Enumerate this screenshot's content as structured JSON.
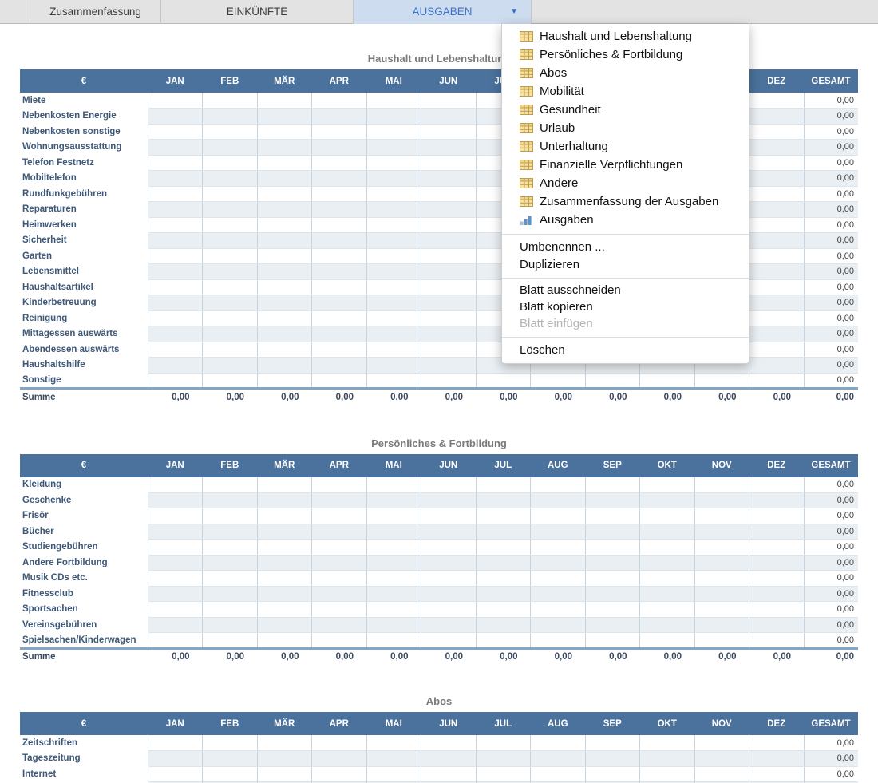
{
  "tab_bar": {
    "tabs": [
      {
        "label": "",
        "partial": true,
        "selected": false,
        "dropdown": false
      },
      {
        "label": "Zusammenfassung",
        "partial": false,
        "selected": false,
        "dropdown": false
      },
      {
        "label": "EINKÜNFTE",
        "partial": false,
        "selected": false,
        "dropdown": false
      },
      {
        "label": "AUSGABEN",
        "partial": false,
        "selected": true,
        "dropdown": true
      }
    ],
    "dropdown_arrow": "▼"
  },
  "sheet_menu": {
    "sheets": [
      {
        "label": "Haushalt und Lebenshaltung",
        "icon": "table-icon"
      },
      {
        "label": "Persönliches & Fortbildung",
        "icon": "table-icon"
      },
      {
        "label": "Abos",
        "icon": "table-icon"
      },
      {
        "label": "Mobilität",
        "icon": "table-icon"
      },
      {
        "label": "Gesundheit",
        "icon": "table-icon"
      },
      {
        "label": "Urlaub",
        "icon": "table-icon"
      },
      {
        "label": "Unterhaltung",
        "icon": "table-icon"
      },
      {
        "label": "Finanzielle Verpflichtungen",
        "icon": "table-icon"
      },
      {
        "label": "Andere",
        "icon": "table-icon"
      },
      {
        "label": "Zusammenfassung der Ausgaben",
        "icon": "table-icon"
      },
      {
        "label": "Ausgaben",
        "icon": "chart-icon"
      }
    ],
    "groups": [
      {
        "items": [
          {
            "label": "Umbenennen ...",
            "disabled": false
          },
          {
            "label": "Duplizieren",
            "disabled": false
          }
        ]
      },
      {
        "items": [
          {
            "label": "Blatt ausschneiden",
            "disabled": false
          },
          {
            "label": "Blatt kopieren",
            "disabled": false
          },
          {
            "label": "Blatt einfügen",
            "disabled": true
          }
        ]
      },
      {
        "items": [
          {
            "label": "Löschen",
            "disabled": false
          }
        ]
      }
    ]
  },
  "months": [
    "JAN",
    "FEB",
    "MÄR",
    "APR",
    "MAI",
    "JUN",
    "JUL",
    "AUG",
    "SEP",
    "OKT",
    "NOV",
    "DEZ"
  ],
  "tables": [
    {
      "title": "Haushalt und Lebenshaltung",
      "currency_header": "€",
      "total_header": "GESAMT",
      "rows": [
        {
          "label": "Miete",
          "gesamt": "0,00"
        },
        {
          "label": "Nebenkosten Energie",
          "gesamt": "0,00"
        },
        {
          "label": "Nebenkosten sonstige",
          "gesamt": "0,00"
        },
        {
          "label": "Wohnungsausstattung",
          "gesamt": "0,00"
        },
        {
          "label": "Telefon Festnetz",
          "gesamt": "0,00"
        },
        {
          "label": "Mobiltelefon",
          "gesamt": "0,00"
        },
        {
          "label": "Rundfunkgebühren",
          "gesamt": "0,00"
        },
        {
          "label": "Reparaturen",
          "gesamt": "0,00"
        },
        {
          "label": "Heimwerken",
          "gesamt": "0,00"
        },
        {
          "label": "Sicherheit",
          "gesamt": "0,00"
        },
        {
          "label": "Garten",
          "gesamt": "0,00"
        },
        {
          "label": "Lebensmittel",
          "gesamt": "0,00"
        },
        {
          "label": "Haushaltsartikel",
          "gesamt": "0,00"
        },
        {
          "label": "Kinderbetreuung",
          "gesamt": "0,00"
        },
        {
          "label": "Reinigung",
          "gesamt": "0,00"
        },
        {
          "label": "Mittagessen auswärts",
          "gesamt": "0,00"
        },
        {
          "label": "Abendessen auswärts",
          "gesamt": "0,00"
        },
        {
          "label": "Haushaltshilfe",
          "gesamt": "0,00"
        },
        {
          "label": "Sonstige",
          "gesamt": "0,00"
        }
      ],
      "summe": {
        "label": "Summe",
        "values": [
          "0,00",
          "0,00",
          "0,00",
          "0,00",
          "0,00",
          "0,00",
          "0,00",
          "0,00",
          "0,00",
          "0,00",
          "0,00",
          "0,00"
        ],
        "gesamt": "0,00"
      }
    },
    {
      "title": "Persönliches & Fortbildung",
      "currency_header": "€",
      "total_header": "GESAMT",
      "rows": [
        {
          "label": "Kleidung",
          "gesamt": "0,00"
        },
        {
          "label": "Geschenke",
          "gesamt": "0,00"
        },
        {
          "label": "Frisör",
          "gesamt": "0,00"
        },
        {
          "label": "Bücher",
          "gesamt": "0,00"
        },
        {
          "label": "Studiengebühren",
          "gesamt": "0,00"
        },
        {
          "label": "Andere Fortbildung",
          "gesamt": "0,00"
        },
        {
          "label": "Musik CDs etc.",
          "gesamt": "0,00"
        },
        {
          "label": "Fitnessclub",
          "gesamt": "0,00"
        },
        {
          "label": "Sportsachen",
          "gesamt": "0,00"
        },
        {
          "label": "Vereinsgebühren",
          "gesamt": "0,00"
        },
        {
          "label": "Spielsachen/Kinderwagen",
          "gesamt": "0,00"
        }
      ],
      "summe": {
        "label": "Summe",
        "values": [
          "0,00",
          "0,00",
          "0,00",
          "0,00",
          "0,00",
          "0,00",
          "0,00",
          "0,00",
          "0,00",
          "0,00",
          "0,00",
          "0,00"
        ],
        "gesamt": "0,00"
      }
    },
    {
      "title": "Abos",
      "currency_header": "€",
      "total_header": "GESAMT",
      "rows": [
        {
          "label": "Zeitschriften",
          "gesamt": "0,00"
        },
        {
          "label": "Tageszeitung",
          "gesamt": "0,00"
        },
        {
          "label": "Internet",
          "gesamt": "0,00"
        },
        {
          "label": "",
          "gesamt": ""
        }
      ],
      "summe": null
    }
  ],
  "colors": {
    "table_header_bg": "#4B729C",
    "selected_tab_bg": "#CDDCEE",
    "selected_tab_text": "#3B74C9",
    "alt_row_bg": "#EAEFF3",
    "grid_line": "#C6D4E0",
    "summe_divider": "#84A6C5",
    "row_label_text": "#3E5878",
    "menu_icon_yellow": "#F7E2A0",
    "menu_chart_blue": "#5E92CC"
  }
}
